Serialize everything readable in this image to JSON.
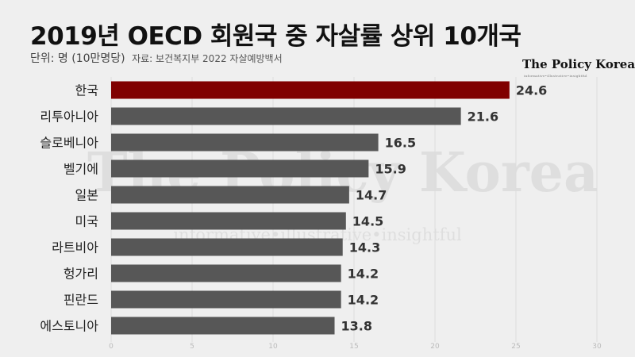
{
  "header": {
    "title": "2019년 OECD 회원국 중 자살률 상위 10개국",
    "unit": "단위: 명 (10만명당)",
    "source": "자료: 보건복지부 2022 자살예방백서"
  },
  "brand": {
    "name": "The Policy Korea",
    "tagline": "informative•illustrative•insightful"
  },
  "watermark": {
    "name": "The Policy Korea",
    "tagline": "informative•illustrative•insightful"
  },
  "colors": {
    "highlight": "#800000",
    "bar": "#575757",
    "background": "#efefef"
  },
  "chart_data": {
    "type": "bar",
    "orientation": "horizontal",
    "categories": [
      "한국",
      "리투아니아",
      "슬로베니아",
      "벨기에",
      "일본",
      "미국",
      "라트비아",
      "헝가리",
      "핀란드",
      "에스토니아"
    ],
    "values": [
      24.6,
      21.6,
      16.5,
      15.9,
      14.7,
      14.5,
      14.3,
      14.2,
      14.2,
      13.8
    ],
    "highlight_index": 0,
    "xlim": [
      0,
      30
    ],
    "xticks": [
      0,
      5,
      10,
      15,
      20,
      25,
      30
    ],
    "grid": true,
    "legend": "none"
  }
}
